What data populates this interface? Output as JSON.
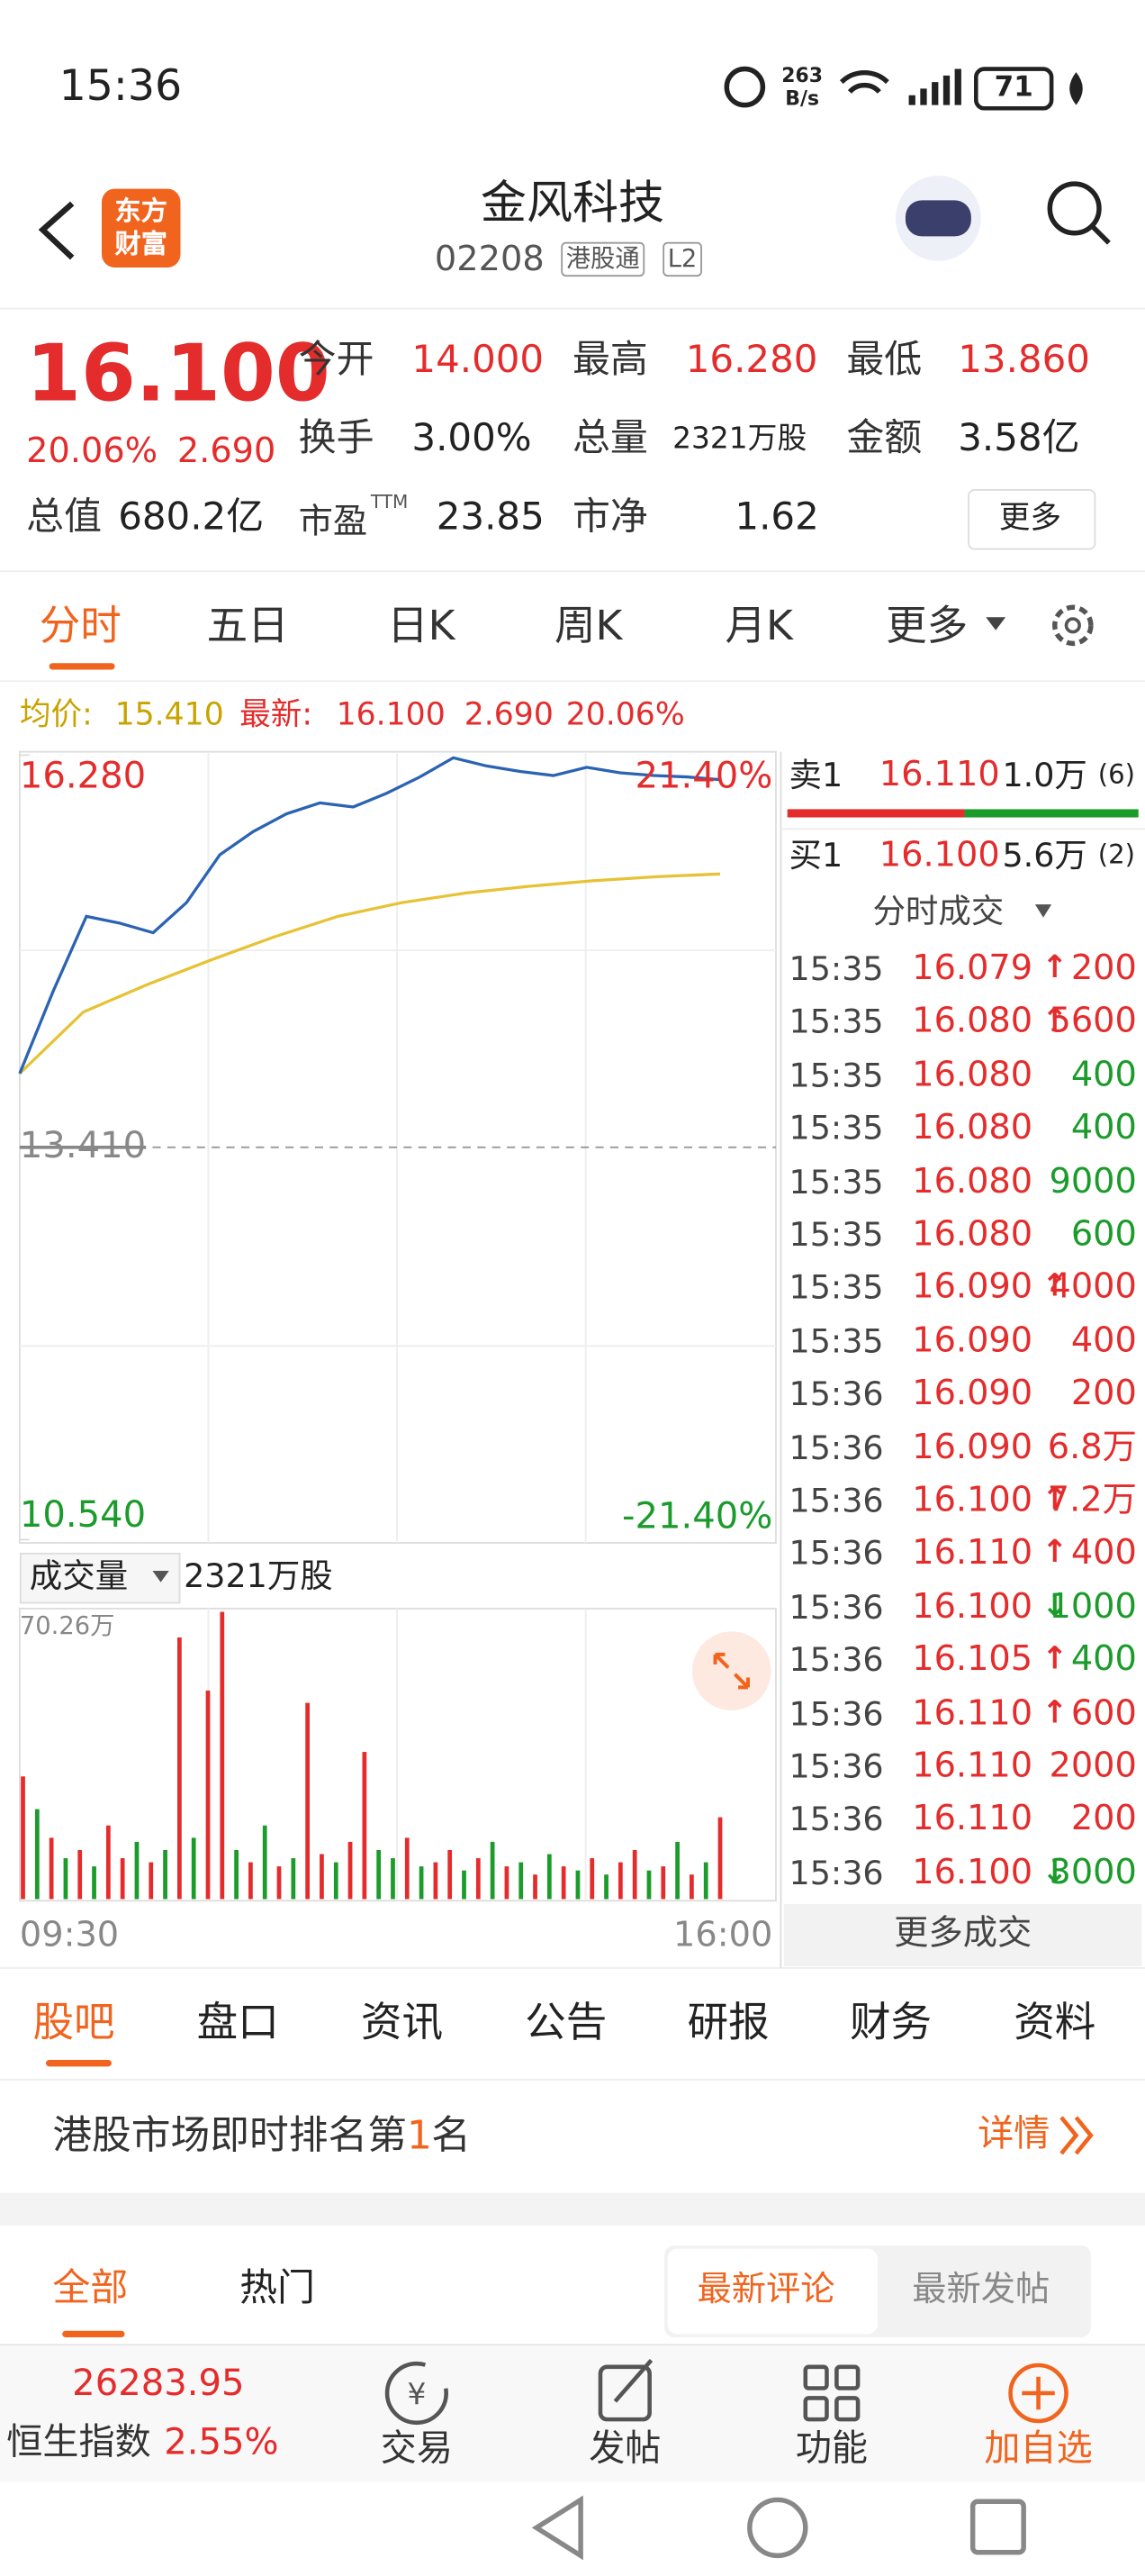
{
  "status_bar": {
    "time": "15:36",
    "speed": "263",
    "speed_unit": "B/s",
    "battery": "71"
  },
  "header": {
    "logo": [
      "东方",
      "财富"
    ],
    "name": "金风科技",
    "code": "02208",
    "tags": [
      "港股通",
      "L2"
    ]
  },
  "quote": {
    "price": "16.100",
    "change_pct": "20.06%",
    "change": "2.690",
    "fields": [
      {
        "label": "今开",
        "value": "14.000"
      },
      {
        "label": "最高",
        "value": "16.280"
      },
      {
        "label": "最低",
        "value": "13.860"
      },
      {
        "label": "换手",
        "value": "3.00%"
      },
      {
        "label": "总量",
        "value": "2321万股"
      },
      {
        "label": "金额",
        "value": "3.58亿"
      }
    ],
    "cap_label": "总值",
    "cap": "680.2亿",
    "pe_label": "市盈",
    "pe_sup": "TTM",
    "pe": "23.85",
    "pb_label": "市净",
    "pb": "1.62",
    "more": "更多"
  },
  "tabs": [
    "分时",
    "五日",
    "日K",
    "周K",
    "月K",
    "更多"
  ],
  "legend": {
    "avg_label": "均价:",
    "avg": "15.410",
    "latest_label": "最新:",
    "latest": "16.100",
    "change": "2.690",
    "pct": "20.06%"
  },
  "intraday": {
    "ylim": [
      10.54,
      16.28
    ],
    "yticks": [
      {
        "value": 16.28,
        "label": "16.280"
      },
      {
        "value": 13.41,
        "label": "13.410"
      },
      {
        "value": 10.54,
        "label": "10.540"
      }
    ],
    "pct_labels": [
      "21.40%",
      "-21.40%"
    ],
    "x_labels": [
      "09:30",
      "16:00"
    ],
    "price_color": "#2b63b3",
    "avg_color": "#e6c234",
    "price": [
      13.95,
      14.55,
      15.1,
      15.05,
      14.98,
      15.2,
      15.55,
      15.72,
      15.85,
      15.93,
      15.9,
      16.0,
      16.12,
      16.26,
      16.2,
      16.16,
      16.13,
      16.19,
      16.15,
      16.13,
      16.12,
      16.1
    ],
    "avg": [
      13.95,
      14.4,
      14.6,
      14.78,
      14.95,
      15.1,
      15.2,
      15.27,
      15.32,
      15.36,
      15.39,
      15.41
    ]
  },
  "volume": {
    "label": "成交量",
    "total": "2321万股",
    "max_label": "70.26万",
    "ylim": [
      0,
      70.26
    ],
    "palette": {
      "up": "#e42c2c",
      "down": "#1b9b2b"
    },
    "values": [
      30,
      22,
      15,
      10,
      12,
      8,
      18,
      10,
      14,
      9,
      12,
      64,
      15,
      51,
      70.26,
      12,
      9,
      18,
      8,
      10,
      48,
      11,
      9,
      14,
      36,
      12,
      10,
      15,
      8,
      9,
      12,
      7,
      10,
      14,
      8,
      9,
      6,
      11,
      8,
      7,
      10,
      6,
      9,
      12,
      7,
      8,
      14,
      6,
      9,
      20
    ],
    "directions": [
      "up",
      "down",
      "up",
      "down",
      "up",
      "down",
      "up",
      "up",
      "down",
      "up",
      "down",
      "up",
      "down",
      "up",
      "up",
      "down",
      "up",
      "down",
      "up",
      "down",
      "up",
      "up",
      "down",
      "up",
      "up",
      "down",
      "down",
      "up",
      "down",
      "up",
      "up",
      "down",
      "up",
      "down",
      "up",
      "down",
      "up",
      "down",
      "up",
      "down",
      "up",
      "down",
      "up",
      "up",
      "down",
      "up",
      "down",
      "up",
      "down",
      "up"
    ]
  },
  "order_book": {
    "ask": {
      "label": "卖1",
      "price": "16.110",
      "size": "1.0万",
      "count": "(6)"
    },
    "bid": {
      "label": "买1",
      "price": "16.100",
      "size": "5.6万",
      "count": "(2)"
    },
    "title": "分时成交",
    "more": "更多成交"
  },
  "trades": [
    {
      "time": "15:35",
      "price": "16.079",
      "arrow": "↑",
      "volume": "200",
      "color": "#e42c2c"
    },
    {
      "time": "15:35",
      "price": "16.080",
      "arrow": "↑",
      "volume": "5600",
      "color": "#e42c2c"
    },
    {
      "time": "15:35",
      "price": "16.080",
      "volume": "400",
      "color": "#1b9b2b"
    },
    {
      "time": "15:35",
      "price": "16.080",
      "volume": "400",
      "color": "#1b9b2b"
    },
    {
      "time": "15:35",
      "price": "16.080",
      "volume": "9000",
      "color": "#1b9b2b"
    },
    {
      "time": "15:35",
      "price": "16.080",
      "volume": "600",
      "color": "#1b9b2b"
    },
    {
      "time": "15:35",
      "price": "16.090",
      "arrow": "↑",
      "volume": "4000",
      "color": "#e42c2c"
    },
    {
      "time": "15:35",
      "price": "16.090",
      "volume": "400",
      "color": "#e42c2c"
    },
    {
      "time": "15:36",
      "price": "16.090",
      "volume": "200",
      "color": "#e42c2c"
    },
    {
      "time": "15:36",
      "price": "16.090",
      "volume": "6.8万",
      "color": "#e42c2c"
    },
    {
      "time": "15:36",
      "price": "16.100",
      "arrow": "↑",
      "volume": "7.2万",
      "color": "#e42c2c"
    },
    {
      "time": "15:36",
      "price": "16.110",
      "arrow": "↑",
      "volume": "400",
      "color": "#e42c2c"
    },
    {
      "time": "15:36",
      "price": "16.100",
      "arrow": "↓",
      "volume": "1000",
      "color": "#1b9b2b"
    },
    {
      "time": "15:36",
      "price": "16.105",
      "arrow": "↑",
      "volume": "400",
      "color": "#1b9b2b"
    },
    {
      "time": "15:36",
      "price": "16.110",
      "arrow": "↑",
      "volume": "600",
      "color": "#e42c2c"
    },
    {
      "time": "15:36",
      "price": "16.110",
      "volume": "2000",
      "color": "#e42c2c"
    },
    {
      "time": "15:36",
      "price": "16.110",
      "volume": "200",
      "color": "#e42c2c"
    },
    {
      "time": "15:36",
      "price": "16.100",
      "arrow": "↓",
      "volume": "3000",
      "color": "#1b9b2b"
    }
  ],
  "sub_tabs": [
    "股吧",
    "盘口",
    "资讯",
    "公告",
    "研报",
    "财务",
    "资料"
  ],
  "ranking": {
    "before": "港股市场即时排名第",
    "rank": "1",
    "after": "名",
    "detail": "详情"
  },
  "filter_tabs": [
    "全部",
    "热门"
  ],
  "sort": [
    "最新评论",
    "最新发帖"
  ],
  "bottom_bar": {
    "index_value": "26283.95",
    "index_name": "恒生指数",
    "index_pct": "2.55%",
    "actions": [
      "交易",
      "发帖",
      "功能",
      "加自选"
    ]
  }
}
